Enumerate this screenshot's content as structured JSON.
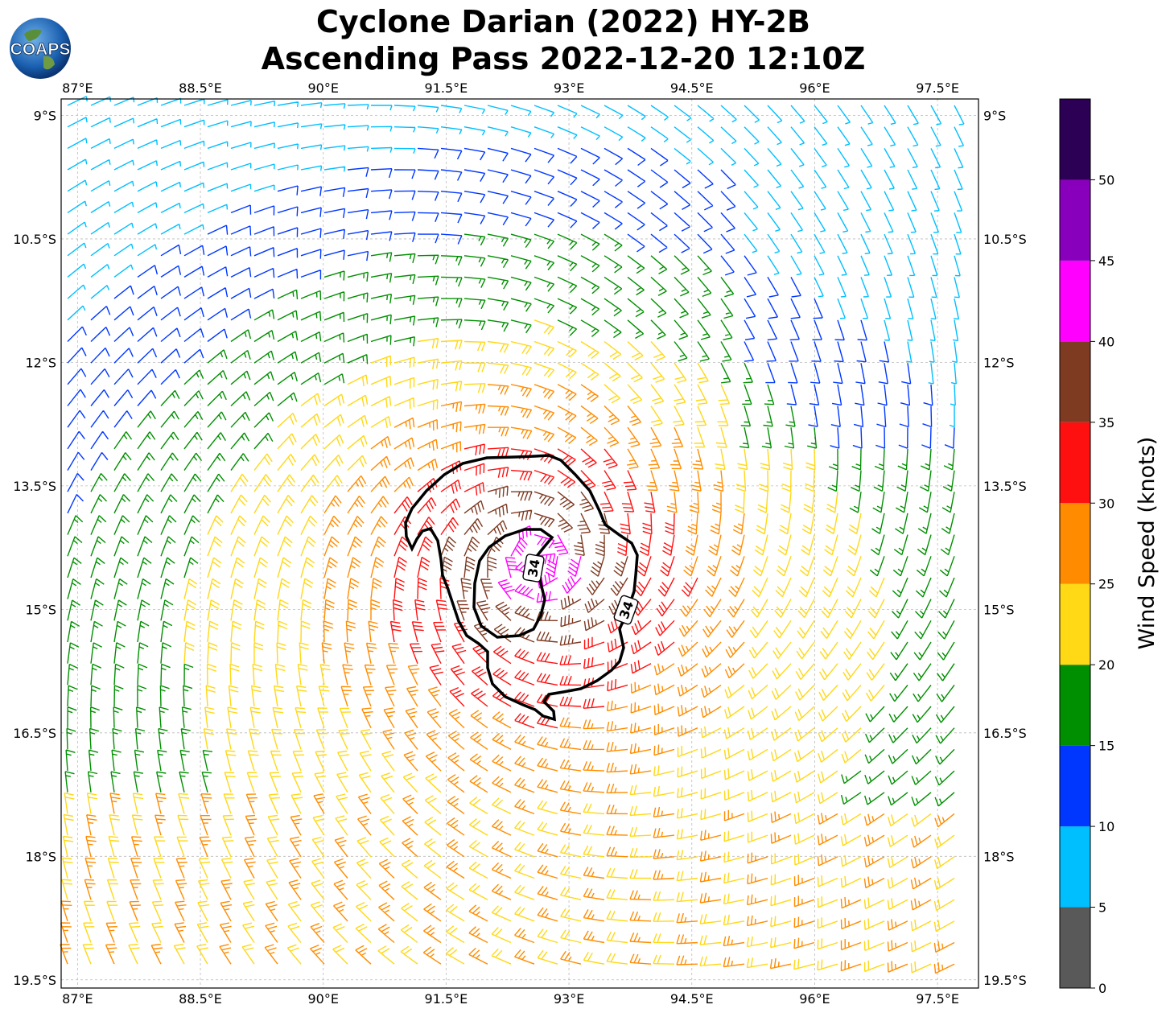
{
  "title": {
    "line1": "Cyclone Darian (2022) HY-2B",
    "line2": "Ascending Pass 2022-12-20 12:10Z"
  },
  "logo": {
    "text": "COAPS",
    "icon": "globe-icon"
  },
  "map": {
    "lon_range": [
      86.8,
      98.0
    ],
    "lat_range": [
      -19.6,
      -8.8
    ],
    "lon_ticks": [
      "87°E",
      "88.5°E",
      "90°E",
      "91.5°E",
      "93°E",
      "94.5°E",
      "96°E",
      "97.5°E"
    ],
    "lon_tick_values": [
      87,
      88.5,
      90,
      91.5,
      93,
      94.5,
      96,
      97.5
    ],
    "lat_ticks": [
      "9°S",
      "10.5°S",
      "12°S",
      "13.5°S",
      "15°S",
      "16.5°S",
      "18°S",
      "19.5°S"
    ],
    "lat_tick_values": [
      -9,
      -10.5,
      -12,
      -13.5,
      -15,
      -16.5,
      -18,
      -19.5
    ],
    "grid": "dashed",
    "center": {
      "lon": 92.6,
      "lat": -14.4
    },
    "contour_label": "34",
    "contour_level_knots": 34
  },
  "colorbar": {
    "label": "Wind Speed (knots)",
    "ticks": [
      "0",
      "5",
      "10",
      "15",
      "20",
      "25",
      "30",
      "35",
      "40",
      "45",
      "50"
    ],
    "bins": [
      {
        "min": 0,
        "max": 5,
        "color": "#595959"
      },
      {
        "min": 5,
        "max": 10,
        "color": "#00bfff"
      },
      {
        "min": 10,
        "max": 15,
        "color": "#0037ff"
      },
      {
        "min": 15,
        "max": 20,
        "color": "#008f00"
      },
      {
        "min": 20,
        "max": 25,
        "color": "#ffd816"
      },
      {
        "min": 25,
        "max": 30,
        "color": "#ff8c00"
      },
      {
        "min": 30,
        "max": 35,
        "color": "#ff1010"
      },
      {
        "min": 35,
        "max": 40,
        "color": "#7f3a22"
      },
      {
        "min": 40,
        "max": 45,
        "color": "#ff00ff"
      },
      {
        "min": 45,
        "max": 50,
        "color": "#8800bb"
      },
      {
        "min": 50,
        "max": 55,
        "color": "#2b0055"
      }
    ]
  }
}
